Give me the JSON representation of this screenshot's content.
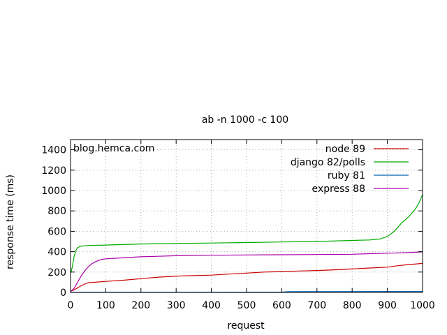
{
  "chart_data": {
    "type": "line",
    "title": "ab -n 1000 -c 100",
    "xlabel": "request",
    "ylabel": "response time (ms)",
    "annotation": "blog.hemca.com",
    "xlim": [
      0,
      1000
    ],
    "ylim": [
      0,
      1500
    ],
    "xticks": [
      0,
      100,
      200,
      300,
      400,
      500,
      600,
      700,
      800,
      900,
      1000
    ],
    "yticks": [
      0,
      200,
      400,
      600,
      800,
      1000,
      1200,
      1400
    ],
    "grid": true,
    "legend_position": "top-right",
    "series": [
      {
        "name": "node 89",
        "color": "#cc0000",
        "points": [
          [
            0,
            10
          ],
          [
            10,
            25
          ],
          [
            20,
            45
          ],
          [
            30,
            65
          ],
          [
            40,
            82
          ],
          [
            50,
            95
          ],
          [
            70,
            100
          ],
          [
            100,
            108
          ],
          [
            150,
            120
          ],
          [
            200,
            135
          ],
          [
            250,
            150
          ],
          [
            300,
            160
          ],
          [
            350,
            165
          ],
          [
            400,
            170
          ],
          [
            450,
            180
          ],
          [
            500,
            190
          ],
          [
            550,
            200
          ],
          [
            600,
            205
          ],
          [
            650,
            210
          ],
          [
            700,
            215
          ],
          [
            750,
            222
          ],
          [
            800,
            230
          ],
          [
            850,
            240
          ],
          [
            900,
            248
          ],
          [
            930,
            262
          ],
          [
            950,
            270
          ],
          [
            1000,
            285
          ]
        ]
      },
      {
        "name": "django 82/polls",
        "color": "#00aa00",
        "points": [
          [
            0,
            180
          ],
          [
            5,
            250
          ],
          [
            10,
            350
          ],
          [
            15,
            410
          ],
          [
            20,
            440
          ],
          [
            30,
            455
          ],
          [
            50,
            460
          ],
          [
            100,
            465
          ],
          [
            200,
            475
          ],
          [
            300,
            480
          ],
          [
            400,
            485
          ],
          [
            500,
            490
          ],
          [
            600,
            495
          ],
          [
            700,
            500
          ],
          [
            800,
            510
          ],
          [
            850,
            515
          ],
          [
            880,
            525
          ],
          [
            900,
            550
          ],
          [
            920,
            600
          ],
          [
            940,
            680
          ],
          [
            960,
            740
          ],
          [
            980,
            820
          ],
          [
            990,
            880
          ],
          [
            1000,
            960
          ]
        ]
      },
      {
        "name": "ruby 81",
        "color": "#0060b0",
        "points": [
          [
            0,
            2
          ],
          [
            300,
            2
          ],
          [
            600,
            3
          ],
          [
            620,
            8
          ],
          [
            800,
            9
          ],
          [
            1000,
            10
          ]
        ]
      },
      {
        "name": "express 88",
        "color": "#aa00aa",
        "points": [
          [
            0,
            8
          ],
          [
            10,
            40
          ],
          [
            20,
            100
          ],
          [
            30,
            160
          ],
          [
            40,
            210
          ],
          [
            50,
            250
          ],
          [
            60,
            280
          ],
          [
            70,
            300
          ],
          [
            80,
            315
          ],
          [
            90,
            325
          ],
          [
            100,
            330
          ],
          [
            150,
            340
          ],
          [
            200,
            350
          ],
          [
            250,
            355
          ],
          [
            300,
            360
          ],
          [
            400,
            365
          ],
          [
            500,
            368
          ],
          [
            600,
            370
          ],
          [
            700,
            372
          ],
          [
            800,
            375
          ],
          [
            850,
            380
          ],
          [
            900,
            385
          ],
          [
            950,
            390
          ],
          [
            1000,
            398
          ]
        ]
      }
    ]
  }
}
